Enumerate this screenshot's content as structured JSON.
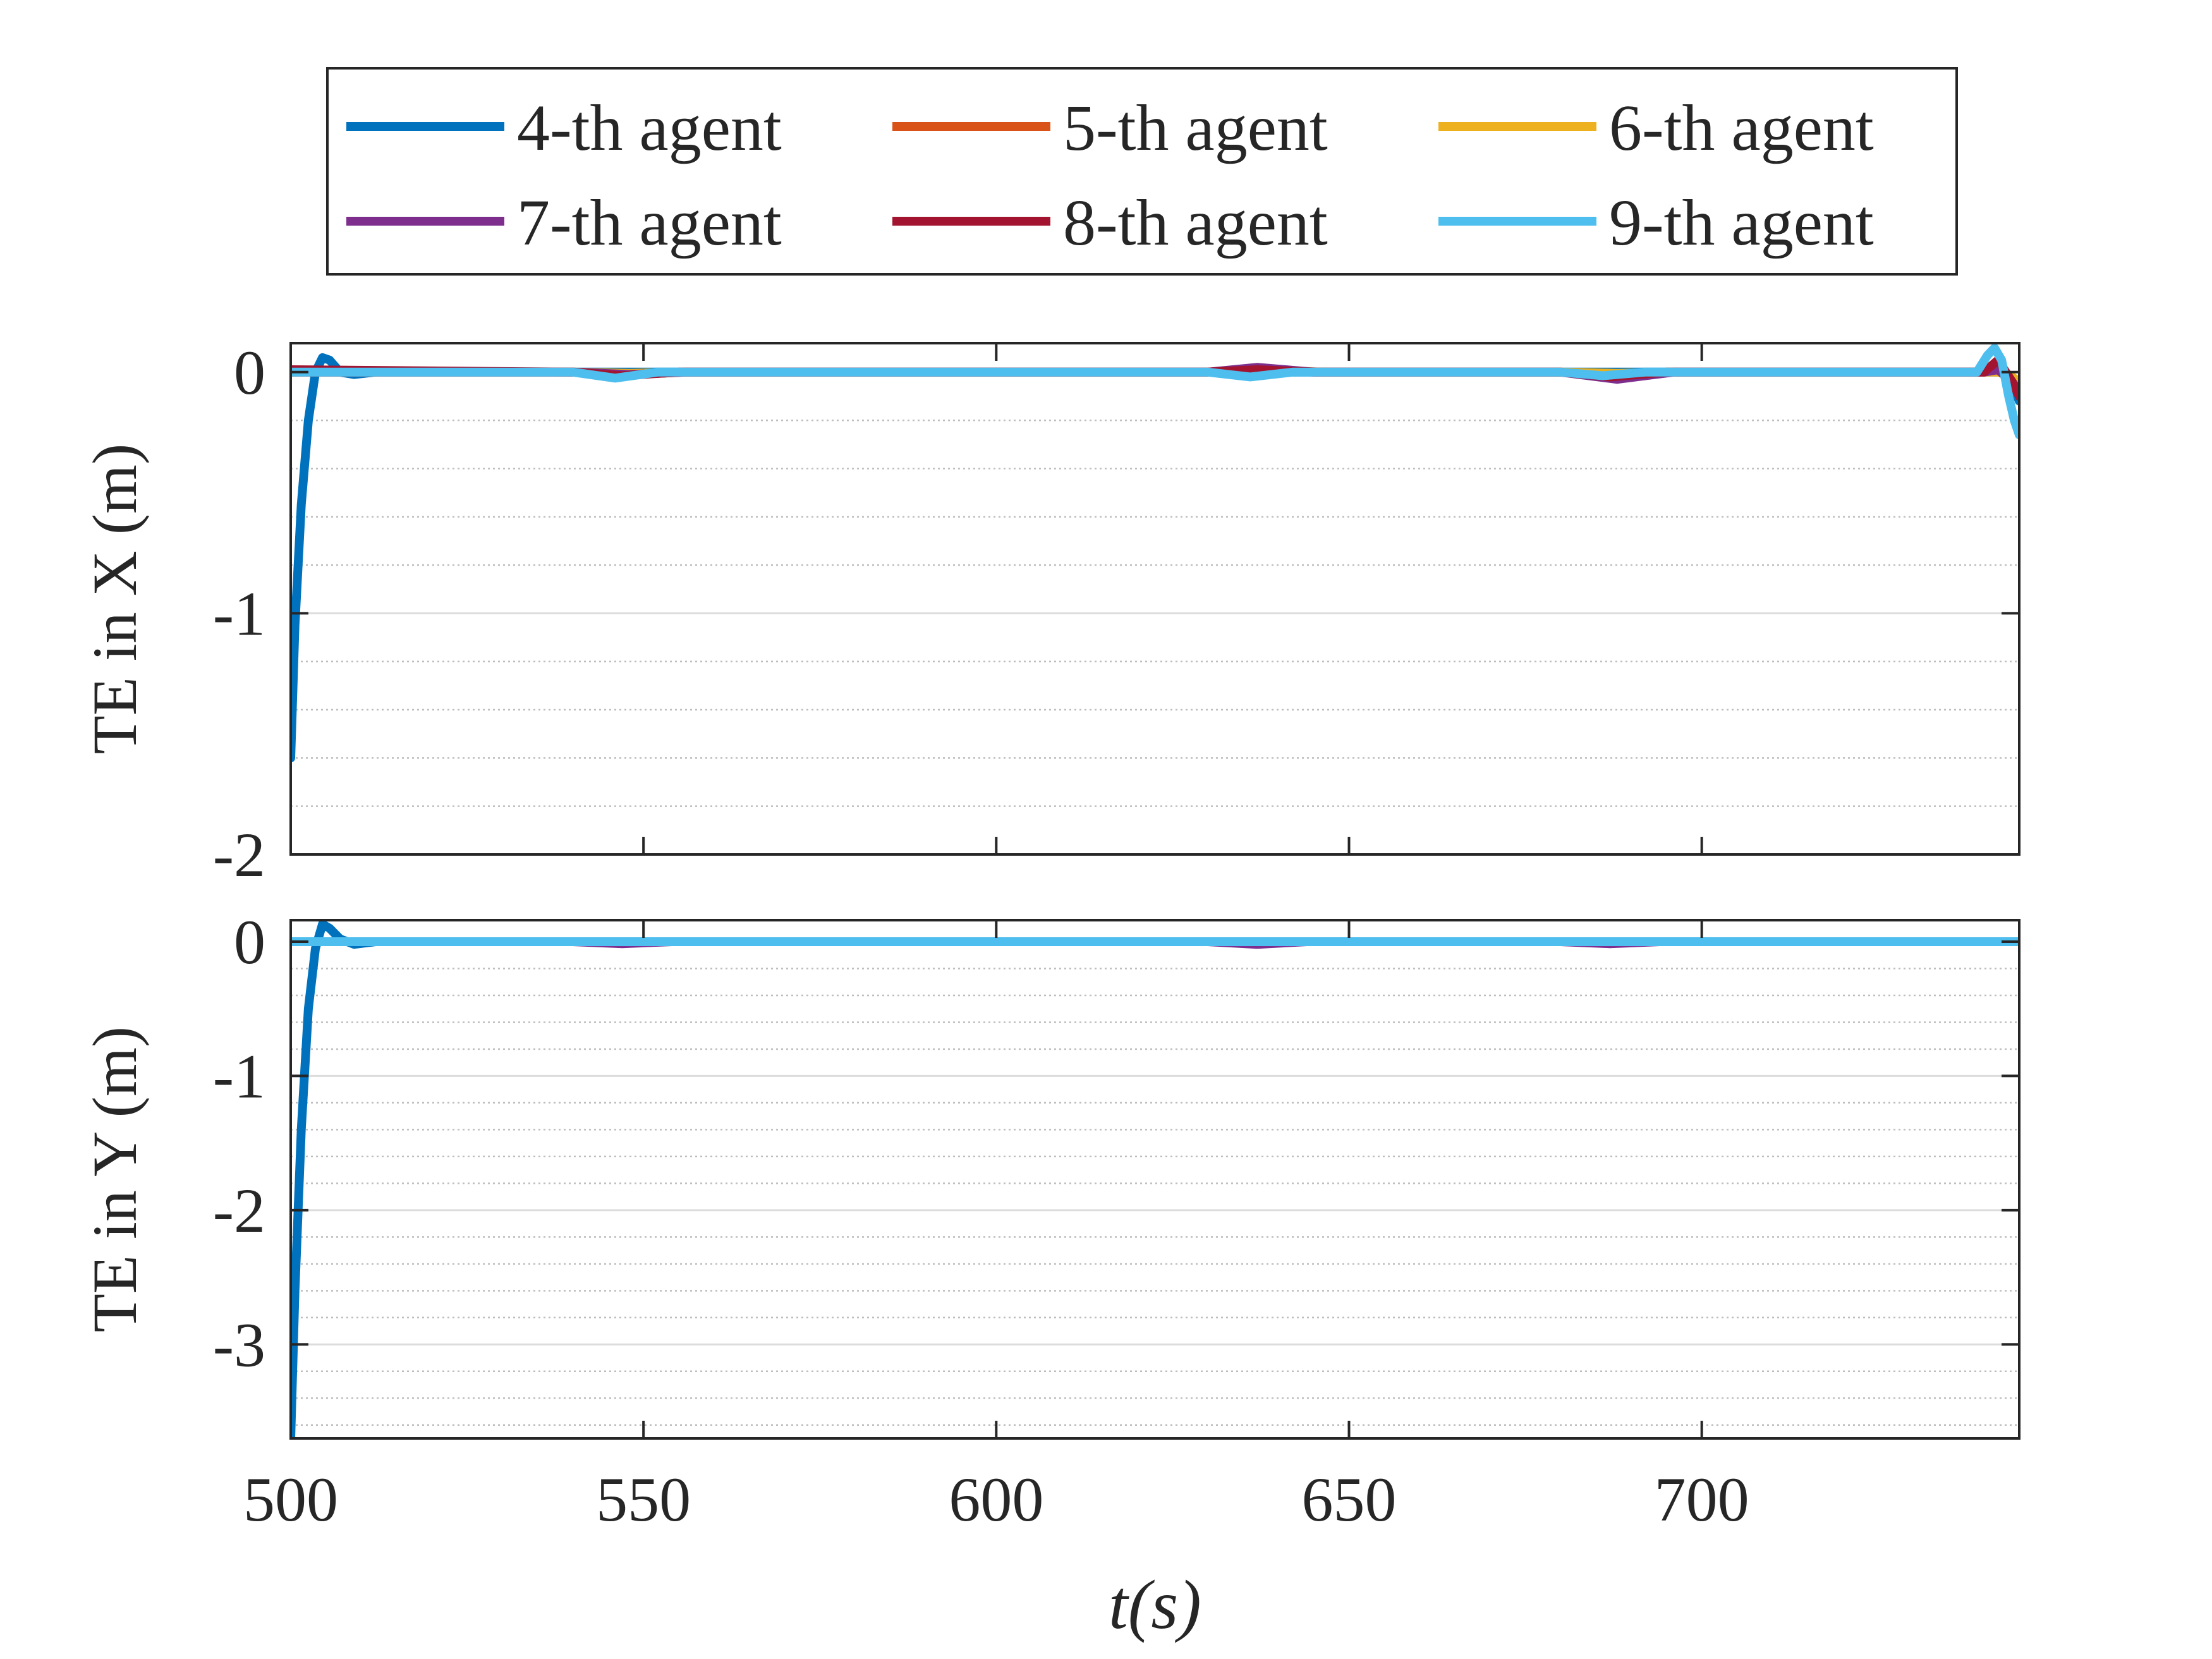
{
  "chart_data": [
    {
      "type": "line",
      "ylabel": "TE in X (m)",
      "xlim": [
        500,
        745
      ],
      "ylim": [
        -2,
        0.12
      ],
      "xticks": [
        500,
        550,
        600,
        650,
        700
      ],
      "xtick_labels": [
        "",
        "",
        "",
        "",
        ""
      ],
      "yticks": [
        -2,
        -1,
        0
      ],
      "ytick_labels": [
        "-2",
        "-1",
        "0"
      ],
      "grid": true,
      "minor_grid": true,
      "series": [
        {
          "name": "4-th agent",
          "color": "#0072BD",
          "x": [
            500,
            500.6,
            501.5,
            502.5,
            503.5,
            504.5,
            505.5,
            507,
            509,
            512,
            520,
            600,
            700,
            740,
            742,
            743,
            744,
            745
          ],
          "y": [
            -1.6,
            -1.05,
            -0.55,
            -0.2,
            0.0,
            0.06,
            0.05,
            0.0,
            -0.01,
            0.0,
            0.0,
            0.0,
            0.0,
            0.0,
            0.0,
            0.0,
            -0.05,
            -0.12
          ]
        },
        {
          "name": "5-th agent",
          "color": "#D95319",
          "x": [
            500,
            540,
            548,
            556,
            630,
            638,
            646,
            680,
            688,
            696,
            740,
            742,
            744,
            745
          ],
          "y": [
            0.0,
            0.0,
            -0.01,
            0.0,
            0.0,
            0.01,
            0.0,
            0.0,
            -0.01,
            0.0,
            0.0,
            0.01,
            -0.03,
            -0.06
          ]
        },
        {
          "name": "6-th agent",
          "color": "#EDB120",
          "x": [
            500,
            540,
            548,
            556,
            630,
            638,
            646,
            680,
            688,
            696,
            740,
            742,
            744,
            745
          ],
          "y": [
            0.0,
            0.0,
            -0.005,
            0.0,
            0.0,
            0.005,
            0.0,
            0.0,
            -0.005,
            0.0,
            0.0,
            0.0,
            -0.02,
            -0.04
          ]
        },
        {
          "name": "7-th agent",
          "color": "#7E2F8E",
          "x": [
            500,
            540,
            548,
            556,
            630,
            637,
            645,
            680,
            688,
            696,
            740,
            742,
            744,
            745
          ],
          "y": [
            0.0,
            0.0,
            -0.01,
            0.0,
            0.0,
            0.02,
            0.0,
            0.0,
            -0.03,
            0.0,
            0.0,
            0.01,
            -0.04,
            -0.08
          ]
        },
        {
          "name": "8-th agent",
          "color": "#A2142F",
          "x": [
            500,
            540,
            547,
            555,
            630,
            637,
            645,
            680,
            687,
            695,
            740,
            742,
            744,
            745
          ],
          "y": [
            0.01,
            0.0,
            -0.015,
            0.0,
            0.0,
            0.01,
            0.0,
            0.0,
            -0.02,
            0.0,
            0.0,
            0.05,
            -0.04,
            -0.1
          ]
        },
        {
          "name": "9-th agent",
          "color": "#4DBEEE",
          "x": [
            500,
            505,
            540,
            546,
            552,
            630,
            636,
            642,
            680,
            686,
            692,
            739,
            740.5,
            741.5,
            742.5,
            743.5,
            744.3,
            745
          ],
          "y": [
            0.0,
            0.0,
            0.0,
            -0.025,
            0.0,
            0.0,
            -0.02,
            0.0,
            0.0,
            -0.015,
            0.0,
            0.0,
            0.07,
            0.1,
            0.05,
            -0.1,
            -0.2,
            -0.26
          ]
        }
      ]
    },
    {
      "type": "line",
      "ylabel": "TE in Y (m)",
      "xlabel": "t(s)",
      "xlim": [
        500,
        745
      ],
      "ylim": [
        -3.7,
        0.16
      ],
      "xticks": [
        500,
        550,
        600,
        650,
        700
      ],
      "xtick_labels": [
        "500",
        "550",
        "600",
        "650",
        "700"
      ],
      "yticks": [
        -3,
        -2,
        -1,
        0
      ],
      "ytick_labels": [
        "-3",
        "-2",
        "-1",
        "0"
      ],
      "grid": true,
      "minor_grid": true,
      "series": [
        {
          "name": "4-th agent",
          "color": "#0072BD",
          "x": [
            500,
            500.6,
            501.5,
            502.5,
            503.5,
            504.5,
            505.5,
            507,
            509,
            512,
            520,
            745
          ],
          "y": [
            -3.7,
            -2.6,
            -1.4,
            -0.5,
            -0.05,
            0.13,
            0.1,
            0.02,
            -0.02,
            0.0,
            0.0,
            0.0
          ]
        },
        {
          "name": "5-th agent",
          "color": "#D95319",
          "x": [
            500,
            745
          ],
          "y": [
            0.0,
            0.0
          ]
        },
        {
          "name": "6-th agent",
          "color": "#EDB120",
          "x": [
            500,
            745
          ],
          "y": [
            0.0,
            0.0
          ]
        },
        {
          "name": "7-th agent",
          "color": "#7E2F8E",
          "x": [
            500,
            540,
            547,
            554,
            630,
            637,
            644,
            680,
            687,
            694,
            745
          ],
          "y": [
            0.0,
            0.0,
            -0.015,
            0.0,
            0.0,
            -0.02,
            0.0,
            0.0,
            -0.015,
            0.0,
            0.0
          ]
        },
        {
          "name": "8-th agent",
          "color": "#A2142F",
          "x": [
            500,
            745
          ],
          "y": [
            0.0,
            0.0
          ]
        },
        {
          "name": "9-th agent",
          "color": "#4DBEEE",
          "x": [
            500,
            745
          ],
          "y": [
            0.0,
            0.0
          ]
        }
      ]
    }
  ],
  "legend": {
    "placement": "top",
    "entries": [
      {
        "label": "4-th agent",
        "color": "#0072BD"
      },
      {
        "label": "5-th agent",
        "color": "#D95319"
      },
      {
        "label": "6-th agent",
        "color": "#EDB120"
      },
      {
        "label": "7-th agent",
        "color": "#7E2F8E"
      },
      {
        "label": "8-th agent",
        "color": "#A2142F"
      },
      {
        "label": "9-th agent",
        "color": "#4DBEEE"
      }
    ]
  }
}
